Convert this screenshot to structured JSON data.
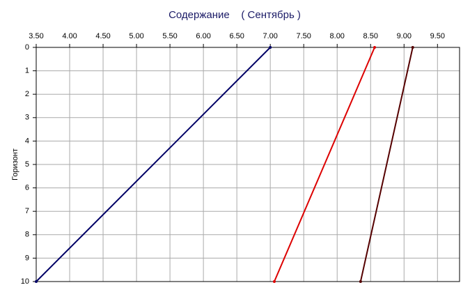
{
  "chart_data": {
    "type": "line",
    "title": "Содержание    ( Сентябрь )",
    "y_label": "Горизонт",
    "y": [
      0,
      10
    ],
    "series": [
      {
        "color": "#000066",
        "values": [
          7.0,
          3.5
        ]
      },
      {
        "color": "#dd0000",
        "values": [
          8.56,
          7.06
        ]
      },
      {
        "color": "#550000",
        "values": [
          9.13,
          8.35
        ]
      }
    ],
    "xlim": [
      3.5,
      9.83
    ],
    "xticks": [
      {
        "value": 3.5,
        "label": "3.50"
      },
      {
        "value": 4,
        "label": "4.00"
      },
      {
        "value": 4.5,
        "label": "4.50"
      },
      {
        "value": 5,
        "label": "5.00"
      },
      {
        "value": 5.5,
        "label": "5.50"
      },
      {
        "value": 6,
        "label": "6.00"
      },
      {
        "value": 6.5,
        "label": "6.50"
      },
      {
        "value": 7,
        "label": "7.00"
      },
      {
        "value": 7.5,
        "label": "7.50"
      },
      {
        "value": 8,
        "label": "8.00"
      },
      {
        "value": 8.5,
        "label": "8.50"
      },
      {
        "value": 9,
        "label": "9.00"
      },
      {
        "value": 9.5,
        "label": "9.50"
      }
    ],
    "ylim": [
      0,
      10
    ],
    "yticks": [
      0,
      1,
      2,
      3,
      4,
      5,
      6,
      7,
      8,
      9,
      10
    ],
    "y_inverted": true,
    "grid": true
  }
}
